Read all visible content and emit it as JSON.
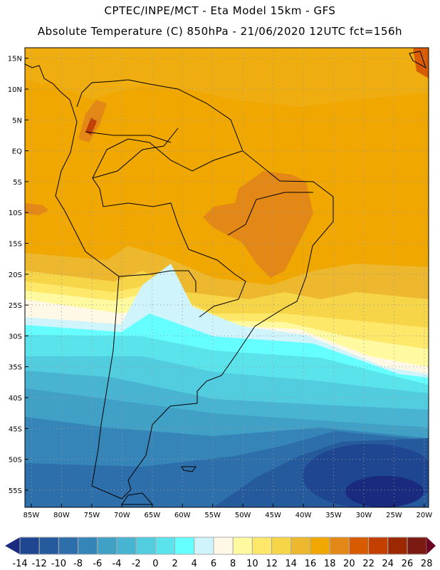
{
  "header": {
    "line1": "CPTEC/INPE/MCT -  Eta Model 15km - GFS",
    "line2": "Absolute Temperature (C) 850hPa - 21/06/2020 12UTC fct=156h"
  },
  "axes": {
    "lat_labels": [
      "15N",
      "10N",
      "5N",
      "EQ",
      "5S",
      "10S",
      "15S",
      "20S",
      "25S",
      "30S",
      "35S",
      "40S",
      "45S",
      "50S",
      "55S"
    ],
    "lat_values": [
      15,
      10,
      5,
      0,
      -5,
      -10,
      -15,
      -20,
      -25,
      -30,
      -35,
      -40,
      -45,
      -50,
      -55
    ],
    "lon_labels": [
      "85W",
      "80W",
      "75W",
      "70W",
      "65W",
      "60W",
      "55W",
      "50W",
      "45W",
      "40W",
      "35W",
      "30W",
      "25W",
      "20W"
    ],
    "lon_values": [
      -85,
      -80,
      -75,
      -70,
      -65,
      -60,
      -55,
      -50,
      -45,
      -40,
      -35,
      -30,
      -25,
      -20
    ]
  },
  "colorbar": {
    "labels": [
      "-14",
      "-12",
      "-10",
      "-8",
      "-6",
      "-4",
      "-2",
      "0",
      "2",
      "4",
      "6",
      "8",
      "10",
      "12",
      "14",
      "16",
      "18",
      "20",
      "22",
      "24",
      "26",
      "28"
    ],
    "under_color": "#1a2a7e",
    "over_color": "#6b0022",
    "colors": [
      "#1f4690",
      "#255a9c",
      "#2c6fab",
      "#3585b8",
      "#40a0c6",
      "#48b4d2",
      "#52cde0",
      "#5ae3ea",
      "#66ffff",
      "#d0f4fc",
      "#fff8e6",
      "#fffaa0",
      "#fee86a",
      "#f6d548",
      "#eeb82e",
      "#f0a800",
      "#e38716",
      "#d95b00",
      "#c23f00",
      "#9a2800",
      "#7a1a12"
    ]
  }
}
